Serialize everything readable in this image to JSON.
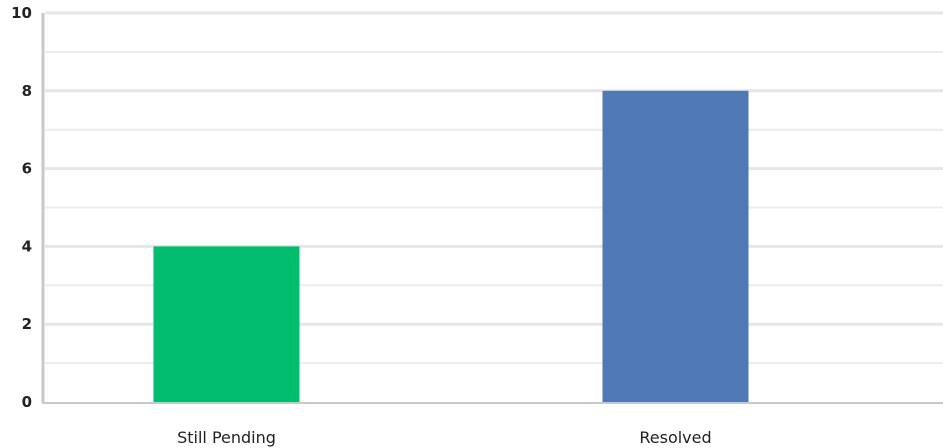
{
  "chart_data": {
    "type": "bar",
    "categories": [
      "Still Pending",
      "Resolved"
    ],
    "values": [
      4,
      8
    ],
    "colors": [
      "#00be6e",
      "#4e79b4"
    ],
    "ylim": [
      0,
      10
    ],
    "yticks": [
      0,
      2,
      4,
      6,
      8,
      10
    ],
    "yticks_labels": [
      "0",
      "2",
      "4",
      "6",
      "8",
      "10"
    ],
    "grid": true,
    "title": "",
    "xlabel": "",
    "ylabel": ""
  }
}
